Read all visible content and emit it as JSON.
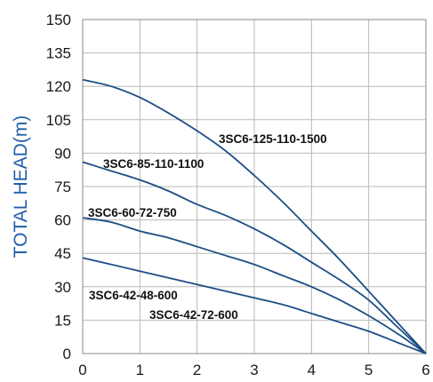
{
  "chart_data": {
    "type": "line",
    "ylabel": "TOTAL HEAD(m)",
    "xlabel": "",
    "xlim": [
      0,
      6
    ],
    "ylim": [
      0,
      150
    ],
    "x_ticks": [
      "0",
      "1",
      "2",
      "3",
      "4",
      "5",
      "6"
    ],
    "y_ticks": [
      "0",
      "15",
      "30",
      "45",
      "60",
      "75",
      "90",
      "105",
      "120",
      "135",
      "150"
    ],
    "grid": true,
    "line_color": "#1c4e86",
    "series": [
      {
        "name": "3SC6-125-110-1500",
        "x": [
          0,
          0.5,
          1,
          1.5,
          2,
          2.5,
          3,
          3.5,
          4,
          4.5,
          5,
          5.5,
          6
        ],
        "values": [
          123,
          120,
          115,
          108,
          100,
          91,
          80,
          68,
          55,
          42,
          28,
          14,
          0
        ]
      },
      {
        "name": "3SC6-85-110-1100",
        "x": [
          0,
          0.5,
          1,
          1.5,
          2,
          2.5,
          3,
          3.5,
          4,
          4.5,
          5,
          5.5,
          6
        ],
        "values": [
          86,
          82,
          78,
          73,
          67,
          62,
          56,
          49,
          41,
          33,
          24,
          12,
          0
        ]
      },
      {
        "name": "3SC6-60-72-750",
        "x": [
          0,
          0.5,
          1,
          1.5,
          2,
          2.5,
          3,
          3.5,
          4,
          4.5,
          5,
          5.5,
          6
        ],
        "values": [
          61,
          59,
          55,
          52,
          48,
          44,
          40,
          35,
          30,
          24,
          17,
          9,
          0
        ]
      },
      {
        "name": "3SC6-42-48-600",
        "x": [
          0,
          0.5,
          1,
          1.5,
          2,
          2.5,
          3,
          3.5,
          4,
          4.5,
          5,
          5.5,
          6
        ],
        "values": [
          43,
          40,
          37,
          34,
          31,
          28,
          25,
          22,
          18,
          14,
          10,
          5,
          0
        ]
      },
      {
        "name": "3SC6-42-72-600",
        "x": [],
        "values": []
      }
    ]
  }
}
